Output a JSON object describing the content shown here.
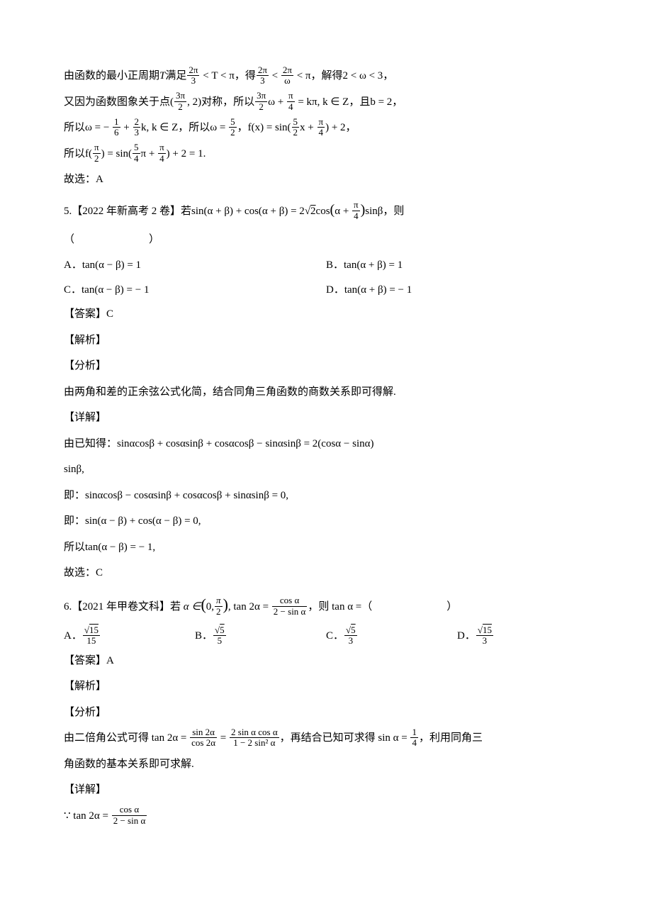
{
  "p4": {
    "sol_l1_a": "由函数的最小正周期",
    "sol_l1_T": "T",
    "sol_l1_b": "满足",
    "sol_l1_c": "< T < π，得",
    "sol_l1_d": "< π，解得2 < ω < 3，",
    "frac_2pi_3_num": "2π",
    "frac_2pi_3_den": "3",
    "frac_2pi_w_num": "2π",
    "frac_2pi_w_den": "ω",
    "sol_l2_a": "又因为函数图象关于点(",
    "sol_l2_b": ", 2)对称，所以",
    "sol_l2_c": "ω  +  ",
    "sol_l2_d": " = kπ, k  ∈  Z，且b  =  2，",
    "frac_3pi_2_num": "3π",
    "frac_3pi_2_den": "2",
    "frac_pi_4_num": "π",
    "frac_pi_4_den": "4",
    "sol_l3_a": "所以ω  =  − ",
    "sol_l3_b": "  +  ",
    "sol_l3_c": "k, k  ∈  Z，所以ω  =  ",
    "sol_l3_d": "，f(x)  =  sin(",
    "sol_l3_e": "x  +  ",
    "sol_l3_f": ")  +  2，",
    "frac_1_6_num": "1",
    "frac_1_6_den": "6",
    "frac_2_3_num": "2",
    "frac_2_3_den": "3",
    "frac_5_2_num": "5",
    "frac_5_2_den": "2",
    "sol_l4_a": "所以f(",
    "sol_l4_b": ")  =  sin(",
    "sol_l4_c": "π  +  ",
    "sol_l4_d": ")  +  2  =  1.",
    "frac_pi_2_num": "π",
    "frac_pi_2_den": "2",
    "frac_5_4_num": "5",
    "frac_5_4_den": "4",
    "sol_l5": "故选：A"
  },
  "q5": {
    "prefix": "5.【2022 年新高考 2 卷】若sin(α  +  β)  +  cos(α  +  β)  =  2",
    "sqrt2": "2",
    "mid1": "cos",
    "paren_l": "(",
    "paren_inner_a": "α  +  ",
    "paren_r": ")",
    "suffix": "sinβ，则",
    "paren_line": "（　　　　　　　）",
    "optA": "A．tan(α − β)  =  1",
    "optB": "B．tan(α  +  β)  =  1",
    "optC": "C．tan(α − β)  =  − 1",
    "optD": "D．tan(α  +  β)  =  − 1",
    "ans": "【答案】C",
    "jiexi": "【解析】",
    "fenxi": "【分析】",
    "analysis": "由两角和差的正余弦公式化简，结合同角三角函数的商数关系即可得解.",
    "xiangjie": "【详解】",
    "d1": "由已知得：sinαcosβ  +  cosαsinβ  +  cosαcosβ − sinαsinβ  =  2(cosα − sinα)",
    "d1b": "sinβ,",
    "d2": "即：sinαcosβ − cosαsinβ  +  cosαcosβ  +  sinαsinβ  =  0,",
    "d3": "即：sin(α − β)  +  cos(α − β)  =  0,",
    "d4": "所以tan(α − β)  =  − 1,",
    "d5": "故选：C"
  },
  "q6": {
    "prefix": "6.【2021 年甲卷文科】若",
    "alpha_in": "α ∈",
    "lparen": "(",
    "zero": "0,",
    "rparen": ")",
    "comma_tan": ", tan 2α = ",
    "frac1_num": "cos α",
    "frac1_den": "2 − sin α",
    "ze": "，则 tan α =（　　　　　　　）",
    "optA_label": "A．",
    "optA_num": "15",
    "optA_sqrt": "√",
    "optA_den": "15",
    "optB_label": "B．",
    "optB_num": "5",
    "optB_den": "5",
    "optC_label": "C．",
    "optC_num": "5",
    "optC_den": "3",
    "optD_label": "D．",
    "optD_num": "15",
    "optD_den": "3",
    "ans": "【答案】A",
    "jiexi": "【解析】",
    "fenxi": "【分析】",
    "ana_a": "由二倍角公式可得 tan 2α = ",
    "ana_f1_num": "sin 2α",
    "ana_f1_den": "cos 2α",
    "ana_eq": " = ",
    "ana_f2_num": "2 sin α cos α",
    "ana_f2_den": "1 − 2 sin² α",
    "ana_b": "，再结合已知可求得 sin α = ",
    "ana_f3_num": "1",
    "ana_f3_den": "4",
    "ana_c": "，利用同角三",
    "ana_d": "角函数的基本关系即可求解.",
    "xiangjie": "【详解】",
    "det_a": "∵ tan 2α = ",
    "det_f_num": "cos α",
    "det_f_den": "2 − sin α"
  }
}
